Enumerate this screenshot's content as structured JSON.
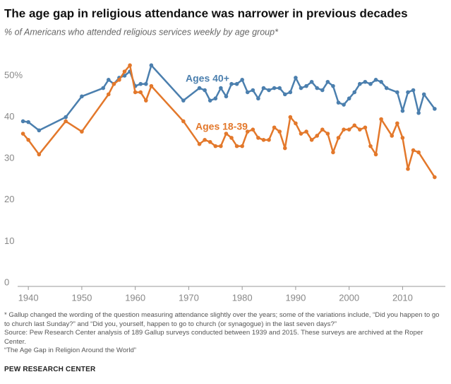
{
  "chart_data": {
    "type": "line",
    "title": "The age gap in religious attendance was narrower in previous decades",
    "subtitle": "% of Americans who attended religious services weekly by age group*",
    "xlim": [
      1938,
      2018
    ],
    "xticks": [
      1940,
      1950,
      1960,
      1970,
      1980,
      1990,
      2000,
      2010
    ],
    "ylim": [
      0,
      50
    ],
    "yticks": [
      0,
      10,
      20,
      30,
      40,
      {
        "value": 50,
        "label": "50%"
      }
    ],
    "grid": false,
    "series": [
      {
        "name": "Ages 40+",
        "color": "#4b7fae",
        "x": [
          1939,
          1940,
          1942,
          1947,
          1950,
          1954,
          1955,
          1956,
          1957,
          1958,
          1959,
          1960,
          1961,
          1962,
          1963,
          1969,
          1972,
          1973,
          1974,
          1975,
          1976,
          1977,
          1978,
          1979,
          1980,
          1981,
          1982,
          1983,
          1984,
          1985,
          1986,
          1987,
          1988,
          1989,
          1990,
          1991,
          1992,
          1993,
          1994,
          1995,
          1996,
          1997,
          1998,
          1999,
          2000,
          2001,
          2002,
          2003,
          2004,
          2005,
          2006,
          2007,
          2009,
          2010,
          2011,
          2012,
          2013,
          2014,
          2016
        ],
        "values": [
          39,
          38.8,
          36.8,
          40,
          45,
          47,
          49,
          48,
          49.5,
          50,
          51,
          47.5,
          48,
          48,
          52.5,
          44,
          47,
          46.5,
          44,
          44.5,
          47,
          45,
          48,
          48,
          49,
          46,
          46.5,
          44.5,
          47,
          46.5,
          47,
          47,
          45.5,
          46,
          49.5,
          47,
          47.5,
          48.5,
          47,
          46.5,
          48.5,
          47.5,
          43.5,
          43,
          44.5,
          46,
          48,
          48.5,
          48,
          49,
          48.5,
          47,
          46,
          41.5,
          46,
          46.5,
          41,
          45.5,
          42
        ]
      },
      {
        "name": "Ages 18-39",
        "color": "#e3782b",
        "x": [
          1939,
          1940,
          1942,
          1947,
          1950,
          1955,
          1956,
          1957,
          1958,
          1959,
          1960,
          1961,
          1962,
          1963,
          1969,
          1972,
          1973,
          1974,
          1975,
          1976,
          1977,
          1978,
          1979,
          1980,
          1981,
          1982,
          1983,
          1984,
          1985,
          1986,
          1987,
          1988,
          1989,
          1990,
          1991,
          1992,
          1993,
          1994,
          1995,
          1996,
          1997,
          1998,
          1999,
          2000,
          2001,
          2002,
          2003,
          2004,
          2005,
          2006,
          2008,
          2009,
          2010,
          2011,
          2012,
          2013,
          2016
        ],
        "values": [
          36,
          34.5,
          31,
          39,
          36.5,
          45.5,
          48,
          49,
          51,
          52.5,
          46,
          46,
          44,
          47.5,
          39,
          33.5,
          34.5,
          34,
          33,
          33,
          36,
          35,
          33,
          33,
          36.5,
          37,
          35,
          34.5,
          34.5,
          37.5,
          36.5,
          32.5,
          40,
          38.5,
          36,
          36.5,
          34.5,
          35.5,
          37,
          36,
          31.5,
          35,
          37,
          37,
          38,
          37,
          37.5,
          33,
          31,
          39.5,
          35.5,
          38.5,
          35,
          27.5,
          32,
          31.5,
          25.5
        ]
      }
    ],
    "notes": [
      "* Gallup changed the wording of the question measuring attendance slightly over the years; some of the variations include, “Did you happen to go to church last Sunday?” and “Did you, yourself, happen to go to church (or synagogue) in the last seven days?”",
      "Source: Pew Research Center analysis of 189 Gallup surveys conducted between 1939 and 2015. These surveys are archived at the Roper Center.",
      "“The Age Gap in Religion Around the World”"
    ],
    "logo": "PEW RESEARCH CENTER"
  }
}
